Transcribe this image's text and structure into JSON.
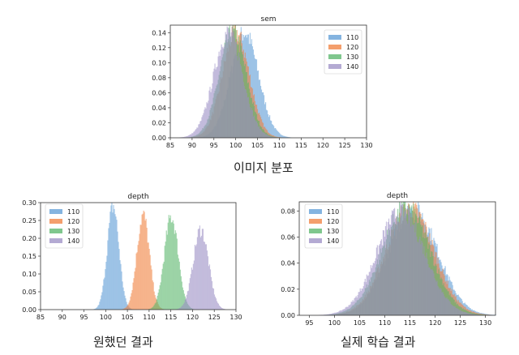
{
  "colors": {
    "c110": "#5b9bd5",
    "c120": "#f07f3c",
    "c130": "#55b468",
    "c140": "#9b8ec4"
  },
  "captions": {
    "top": "이미지 분포",
    "bottom_left": "원했던 결과",
    "bottom_right": "실제 학습 결과"
  },
  "chart_data": [
    {
      "type": "bar",
      "subtype": "overlapping-histogram",
      "title": "sem",
      "xlabel": "",
      "ylabel": "",
      "xlim": [
        85,
        130
      ],
      "ylim": [
        0,
        0.15
      ],
      "xticks": [
        "85",
        "90",
        "95",
        "100",
        "105",
        "110",
        "115",
        "120",
        "125",
        "130"
      ],
      "yticks": [
        "0.00",
        "0.02",
        "0.04",
        "0.06",
        "0.08",
        "0.10",
        "0.12",
        "0.14"
      ],
      "legend_position": "top-right",
      "series": [
        {
          "name": "110",
          "color": "#5b9bd5",
          "mean": 102.0,
          "std": 3.2,
          "peak": 0.14
        },
        {
          "name": "120",
          "color": "#f07f3c",
          "mean": 100.0,
          "std": 3.1,
          "peak": 0.14
        },
        {
          "name": "130",
          "color": "#55b468",
          "mean": 99.3,
          "std": 3.1,
          "peak": 0.14
        },
        {
          "name": "140",
          "color": "#9b8ec4",
          "mean": 98.3,
          "std": 3.3,
          "peak": 0.14
        }
      ]
    },
    {
      "type": "bar",
      "subtype": "overlapping-histogram",
      "title": "depth",
      "xlabel": "",
      "ylabel": "",
      "xlim": [
        85,
        130
      ],
      "ylim": [
        0,
        0.3
      ],
      "xticks": [
        "85",
        "90",
        "95",
        "100",
        "105",
        "110",
        "115",
        "120",
        "125",
        "130"
      ],
      "yticks": [
        "0.00",
        "0.05",
        "0.10",
        "0.15",
        "0.20",
        "0.25",
        "0.30"
      ],
      "legend_position": "top-left",
      "series": [
        {
          "name": "110",
          "color": "#5b9bd5",
          "mean": 101.7,
          "std": 1.35,
          "peak": 0.29
        },
        {
          "name": "120",
          "color": "#f07f3c",
          "mean": 108.6,
          "std": 1.45,
          "peak": 0.265
        },
        {
          "name": "130",
          "color": "#55b468",
          "mean": 115.1,
          "std": 1.6,
          "peak": 0.26
        },
        {
          "name": "140",
          "color": "#9b8ec4",
          "mean": 121.9,
          "std": 1.75,
          "peak": 0.225
        }
      ]
    },
    {
      "type": "bar",
      "subtype": "overlapping-histogram",
      "title": "depth",
      "xlabel": "",
      "ylabel": "",
      "xlim": [
        93,
        132
      ],
      "ylim": [
        0,
        0.087
      ],
      "xticks": [
        "95",
        "100",
        "105",
        "110",
        "115",
        "120",
        "125",
        "130"
      ],
      "yticks": [
        "0.00",
        "0.02",
        "0.04",
        "0.06",
        "0.08"
      ],
      "legend_position": "top-left",
      "series": [
        {
          "name": "110",
          "color": "#5b9bd5",
          "mean": 115.6,
          "std": 4.9,
          "peak": 0.081
        },
        {
          "name": "120",
          "color": "#f07f3c",
          "mean": 115.0,
          "std": 4.8,
          "peak": 0.082
        },
        {
          "name": "130",
          "color": "#55b468",
          "mean": 114.2,
          "std": 4.8,
          "peak": 0.082
        },
        {
          "name": "140",
          "color": "#9b8ec4",
          "mean": 113.2,
          "std": 4.8,
          "peak": 0.079
        }
      ]
    }
  ]
}
